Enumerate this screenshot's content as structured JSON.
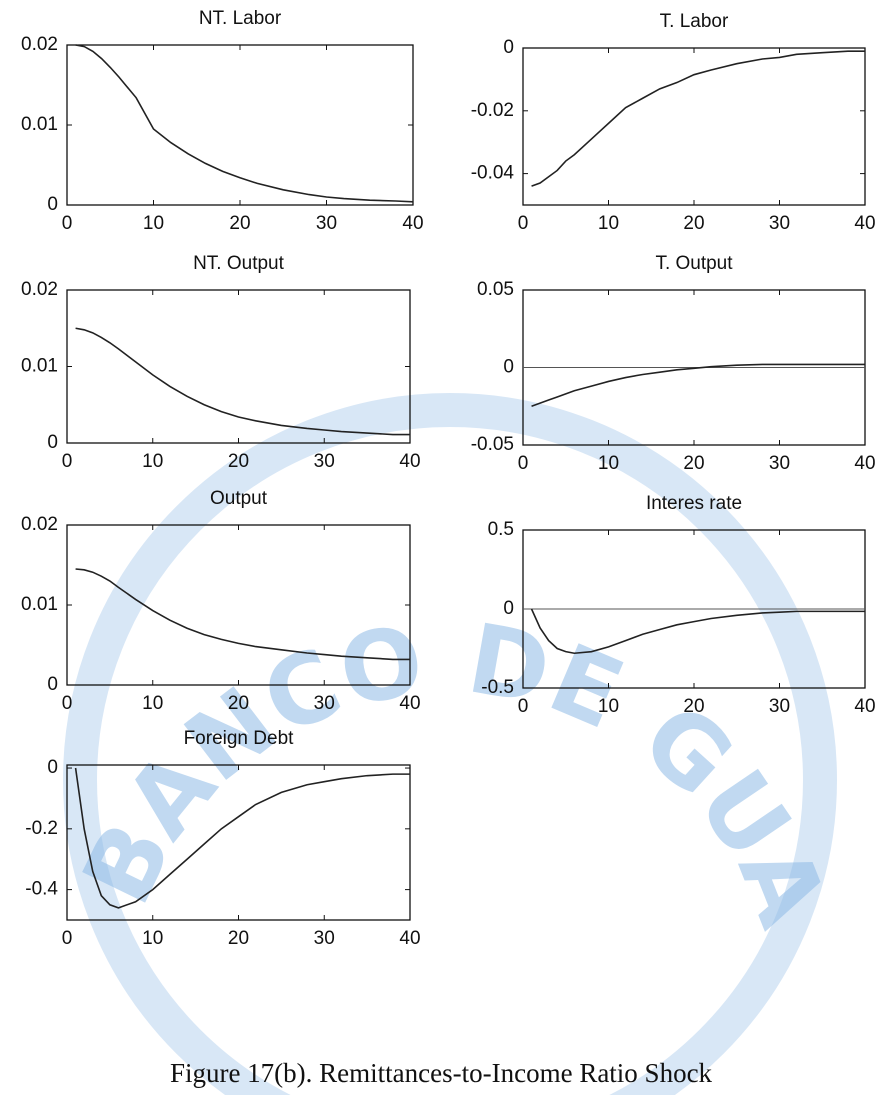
{
  "watermark": "BANCO DE GUATEMALA",
  "caption": "Figure 17(b).   Remittances-to-Income Ratio Shock",
  "chart_data": [
    {
      "type": "line",
      "title": "NT. Labor",
      "xlim": [
        0,
        40
      ],
      "xticks": [
        0,
        10,
        20,
        30,
        40
      ],
      "ylim": [
        0,
        0.02
      ],
      "yticks": [
        0,
        0.01,
        0.02
      ],
      "color": "#222222",
      "x": [
        1,
        2,
        3,
        4,
        5,
        6,
        8,
        10,
        12,
        14,
        16,
        18,
        20,
        22,
        25,
        28,
        30,
        32,
        35,
        38,
        40
      ],
      "values": [
        0.02,
        0.0198,
        0.0192,
        0.0183,
        0.0172,
        0.016,
        0.0134,
        0.0095,
        0.0078,
        0.0064,
        0.0052,
        0.0042,
        0.0034,
        0.0027,
        0.0019,
        0.0013,
        0.001,
        0.0008,
        0.0006,
        0.0005,
        0.0004
      ]
    },
    {
      "type": "line",
      "title": "T. Labor",
      "xlim": [
        0,
        40
      ],
      "xticks": [
        0,
        10,
        20,
        30,
        40
      ],
      "ylim": [
        -0.05,
        0
      ],
      "yticks": [
        -0.04,
        -0.02,
        0
      ],
      "color": "#222222",
      "x": [
        1,
        2,
        3,
        4,
        5,
        6,
        8,
        10,
        12,
        14,
        16,
        18,
        20,
        22,
        25,
        28,
        30,
        32,
        35,
        38,
        40
      ],
      "values": [
        -0.044,
        -0.043,
        -0.041,
        -0.039,
        -0.036,
        -0.034,
        -0.029,
        -0.024,
        -0.019,
        -0.016,
        -0.013,
        -0.011,
        -0.0085,
        -0.007,
        -0.005,
        -0.0035,
        -0.003,
        -0.002,
        -0.0015,
        -0.001,
        -0.001
      ]
    },
    {
      "type": "line",
      "title": "NT. Output",
      "xlim": [
        0,
        40
      ],
      "xticks": [
        0,
        10,
        20,
        30,
        40
      ],
      "ylim": [
        0,
        0.02
      ],
      "yticks": [
        0,
        0.01,
        0.02
      ],
      "color": "#222222",
      "x": [
        1,
        2,
        3,
        4,
        5,
        6,
        8,
        10,
        12,
        14,
        16,
        18,
        20,
        22,
        25,
        28,
        30,
        32,
        35,
        38,
        40
      ],
      "values": [
        0.015,
        0.0148,
        0.0144,
        0.0138,
        0.0131,
        0.0123,
        0.0106,
        0.0089,
        0.0074,
        0.0061,
        0.005,
        0.0041,
        0.0034,
        0.0029,
        0.0023,
        0.0019,
        0.0017,
        0.0015,
        0.0013,
        0.0011,
        0.0011
      ]
    },
    {
      "type": "line",
      "title": "T. Output",
      "xlim": [
        0,
        40
      ],
      "xticks": [
        0,
        10,
        20,
        30,
        40
      ],
      "ylim": [
        -0.05,
        0.05
      ],
      "yticks": [
        -0.05,
        0,
        0.05
      ],
      "color": "#222222",
      "zero_line": true,
      "x": [
        1,
        2,
        3,
        4,
        5,
        6,
        8,
        10,
        12,
        14,
        16,
        18,
        20,
        22,
        25,
        28,
        30,
        32,
        35,
        38,
        40
      ],
      "values": [
        -0.025,
        -0.023,
        -0.021,
        -0.019,
        -0.017,
        -0.015,
        -0.012,
        -0.009,
        -0.0065,
        -0.0045,
        -0.003,
        -0.0015,
        -0.0005,
        0.0005,
        0.0015,
        0.002,
        0.002,
        0.002,
        0.002,
        0.002,
        0.002
      ]
    },
    {
      "type": "line",
      "title": "Output",
      "xlim": [
        0,
        40
      ],
      "xticks": [
        0,
        10,
        20,
        30,
        40
      ],
      "ylim": [
        0,
        0.02
      ],
      "yticks": [
        0,
        0.01,
        0.02
      ],
      "color": "#222222",
      "x": [
        1,
        2,
        3,
        4,
        5,
        6,
        8,
        10,
        12,
        14,
        16,
        18,
        20,
        22,
        25,
        28,
        30,
        32,
        35,
        38,
        40
      ],
      "values": [
        0.0145,
        0.0144,
        0.0141,
        0.0136,
        0.013,
        0.0122,
        0.0107,
        0.0093,
        0.0081,
        0.0071,
        0.0063,
        0.0057,
        0.0052,
        0.0048,
        0.0044,
        0.004,
        0.0038,
        0.0036,
        0.0034,
        0.0032,
        0.0032
      ]
    },
    {
      "type": "line",
      "title": "Interes rate",
      "xlim": [
        0,
        40
      ],
      "xticks": [
        0,
        10,
        20,
        30,
        40
      ],
      "ylim": [
        -0.5,
        0.5
      ],
      "yticks": [
        -0.5,
        0,
        0.5
      ],
      "color": "#222222",
      "zero_line": true,
      "x": [
        1,
        2,
        3,
        4,
        5,
        6,
        8,
        10,
        12,
        14,
        16,
        18,
        20,
        22,
        25,
        28,
        30,
        32,
        35,
        38,
        40
      ],
      "values": [
        0,
        -0.12,
        -0.2,
        -0.25,
        -0.27,
        -0.28,
        -0.27,
        -0.24,
        -0.2,
        -0.16,
        -0.13,
        -0.1,
        -0.08,
        -0.06,
        -0.04,
        -0.025,
        -0.02,
        -0.015,
        -0.015,
        -0.015,
        -0.015
      ]
    },
    {
      "type": "line",
      "title": "Foreign Debt",
      "xlim": [
        0,
        40
      ],
      "xticks": [
        0,
        10,
        20,
        30,
        40
      ],
      "ylim": [
        -0.5,
        0.01
      ],
      "yticks": [
        -0.4,
        -0.2,
        0
      ],
      "color": "#222222",
      "x": [
        1,
        2,
        3,
        4,
        5,
        6,
        8,
        10,
        12,
        14,
        16,
        18,
        20,
        22,
        25,
        28,
        30,
        32,
        35,
        38,
        40
      ],
      "values": [
        0,
        -0.2,
        -0.34,
        -0.42,
        -0.45,
        -0.46,
        -0.44,
        -0.4,
        -0.35,
        -0.3,
        -0.25,
        -0.2,
        -0.16,
        -0.12,
        -0.08,
        -0.055,
        -0.045,
        -0.035,
        -0.025,
        -0.02,
        -0.02
      ]
    }
  ]
}
